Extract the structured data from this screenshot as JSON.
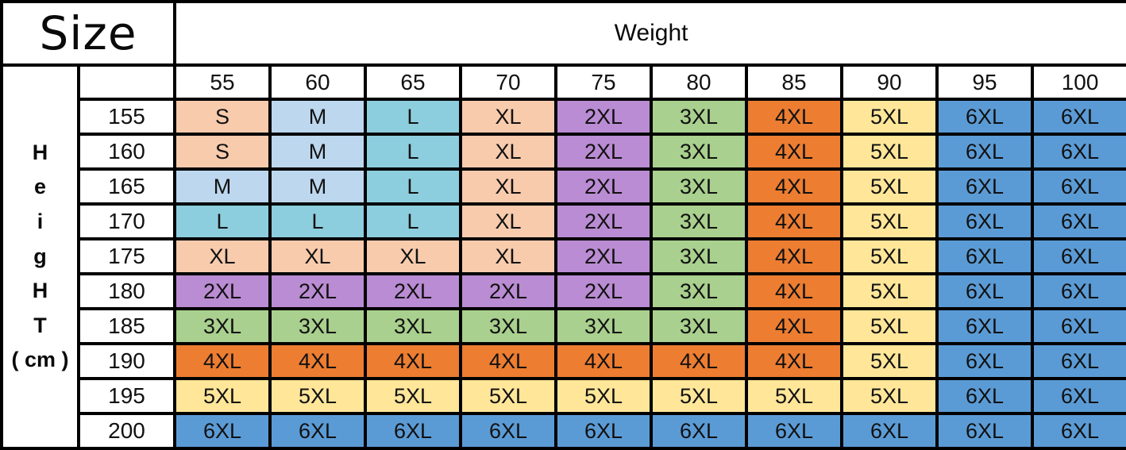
{
  "header": {
    "size_label": "Size",
    "weight_label": "Weight"
  },
  "height_axis": {
    "letters": [
      "",
      "H",
      "e",
      "i",
      "g",
      "H",
      "T",
      "( cm )",
      "",
      ""
    ]
  },
  "chart_data": {
    "type": "table",
    "title": "Size",
    "x_header": "Weight",
    "x_values": [
      "55",
      "60",
      "65",
      "70",
      "75",
      "80",
      "85",
      "90",
      "95",
      "100"
    ],
    "y_header": "HeigHT ( cm )",
    "y_values": [
      "155",
      "160",
      "165",
      "170",
      "175",
      "180",
      "185",
      "190",
      "195",
      "200"
    ],
    "matrix": [
      [
        "S",
        "M",
        "L",
        "XL",
        "2XL",
        "3XL",
        "4XL",
        "5XL",
        "6XL",
        "6XL"
      ],
      [
        "S",
        "M",
        "L",
        "XL",
        "2XL",
        "3XL",
        "4XL",
        "5XL",
        "6XL",
        "6XL"
      ],
      [
        "M",
        "M",
        "L",
        "XL",
        "2XL",
        "3XL",
        "4XL",
        "5XL",
        "6XL",
        "6XL"
      ],
      [
        "L",
        "L",
        "L",
        "XL",
        "2XL",
        "3XL",
        "4XL",
        "5XL",
        "6XL",
        "6XL"
      ],
      [
        "XL",
        "XL",
        "XL",
        "XL",
        "2XL",
        "3XL",
        "4XL",
        "5XL",
        "6XL",
        "6XL"
      ],
      [
        "2XL",
        "2XL",
        "2XL",
        "2XL",
        "2XL",
        "3XL",
        "4XL",
        "5XL",
        "6XL",
        "6XL"
      ],
      [
        "3XL",
        "3XL",
        "3XL",
        "3XL",
        "3XL",
        "3XL",
        "4XL",
        "5XL",
        "6XL",
        "6XL"
      ],
      [
        "4XL",
        "4XL",
        "4XL",
        "4XL",
        "4XL",
        "4XL",
        "4XL",
        "5XL",
        "6XL",
        "6XL"
      ],
      [
        "5XL",
        "5XL",
        "5XL",
        "5XL",
        "5XL",
        "5XL",
        "5XL",
        "5XL",
        "6XL",
        "6XL"
      ],
      [
        "6XL",
        "6XL",
        "6XL",
        "6XL",
        "6XL",
        "6XL",
        "6XL",
        "6XL",
        "6XL",
        "6XL"
      ]
    ]
  },
  "colors": {
    "border": "#000000",
    "text": "#111111",
    "size_fill": {
      "S": "#F8CBAD",
      "M": "#BDD7EE",
      "L": "#8DCEDE",
      "XL": "#F8CBAD",
      "2XL": "#BA8CD3",
      "3XL": "#A9D08E",
      "4XL": "#EC7D31",
      "5XL": "#FFE699",
      "6XL": "#5B9BD5"
    }
  }
}
